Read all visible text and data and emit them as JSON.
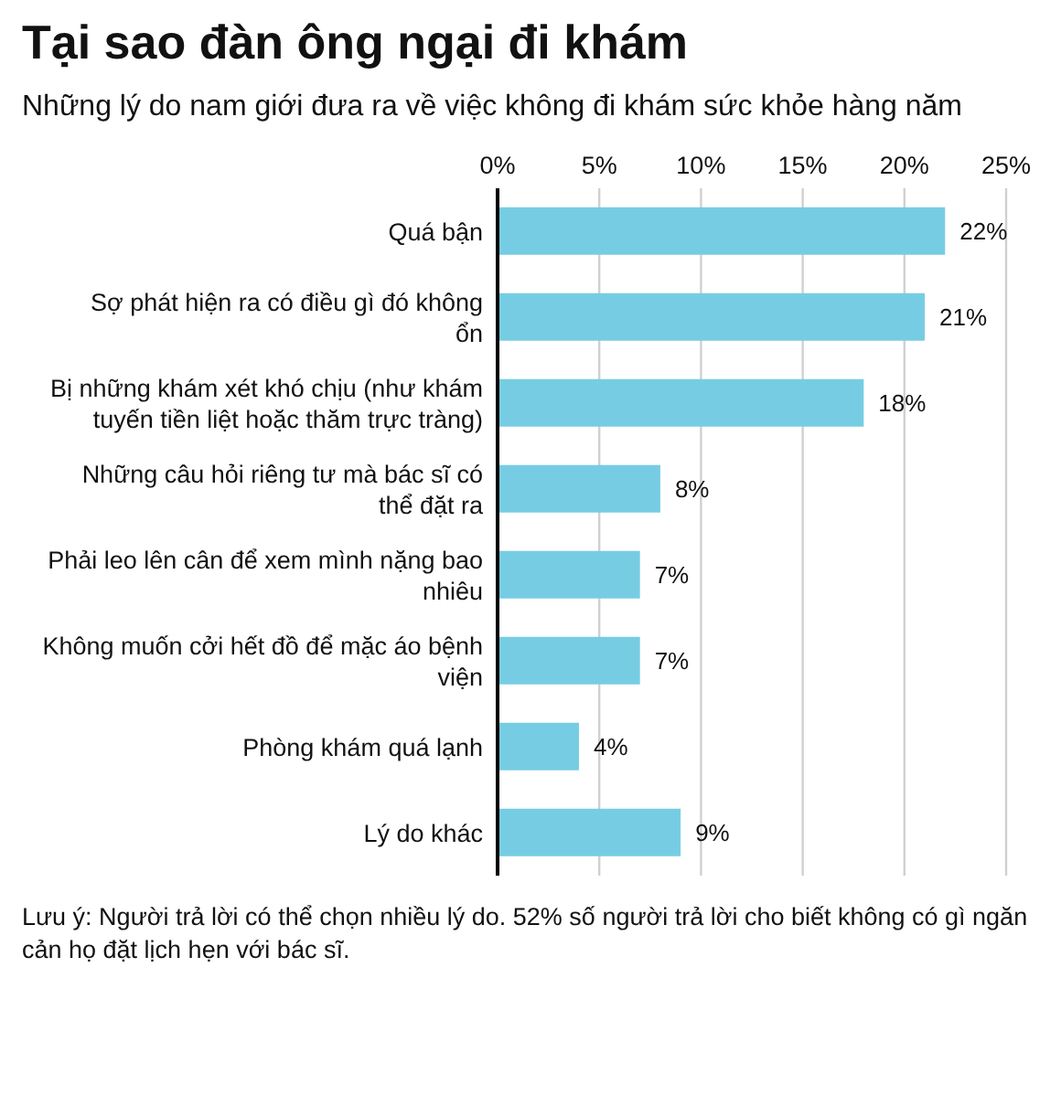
{
  "chart_data": {
    "type": "bar",
    "orientation": "horizontal",
    "title": "Tại sao đàn ông ngại đi khám",
    "subtitle": "Những lý do nam giới đưa ra về việc không đi khám sức khỏe hàng năm",
    "categories": [
      "Quá bận",
      "Sợ phát hiện ra có điều gì đó không ổn",
      "Bị những khám xét khó chịu (như khám tuyến tiền liệt hoặc thăm trực tràng)",
      "Những câu hỏi riêng tư mà bác sĩ có thể đặt ra",
      "Phải leo lên cân để xem mình nặng bao nhiêu",
      "Không muốn cởi hết đồ để mặc áo bệnh viện",
      "Phòng khám quá lạnh",
      "Lý do khác"
    ],
    "values": [
      22,
      21,
      18,
      8,
      7,
      7,
      4,
      9
    ],
    "value_labels": [
      "22%",
      "21%",
      "18%",
      "8%",
      "7%",
      "7%",
      "4%",
      "9%"
    ],
    "color": "#76cde3",
    "xlim": [
      0,
      25
    ],
    "xticks": [
      {
        "value": 0,
        "label": "0%"
      },
      {
        "value": 5,
        "label": "5%"
      },
      {
        "value": 10,
        "label": "10%"
      },
      {
        "value": 15,
        "label": "15%"
      },
      {
        "value": 20,
        "label": "20%"
      },
      {
        "value": 25,
        "label": "25%"
      }
    ],
    "grid": "x",
    "annotations": [
      "Lưu ý: Người trả lời có thể chọn nhiều lý do. 52% số người trả lời cho biết không có gì ngăn cản họ đặt lịch hẹn với bác sĩ."
    ]
  }
}
